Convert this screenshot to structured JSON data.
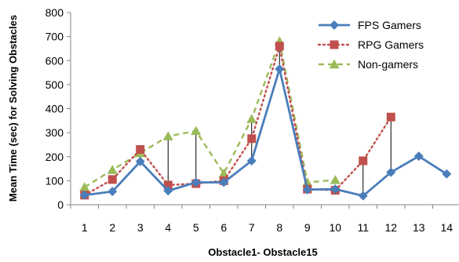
{
  "chart_data": {
    "type": "line",
    "title": "",
    "xlabel": "Obstacle1- Obstacle15",
    "ylabel": "Mean Time (sec) for Solving Obstacles",
    "x": [
      1,
      2,
      3,
      4,
      5,
      6,
      7,
      8,
      9,
      10,
      11,
      12,
      13,
      14
    ],
    "ylim": [
      0,
      800
    ],
    "yticks": [
      0,
      100,
      200,
      300,
      400,
      500,
      600,
      700,
      800
    ],
    "grid": false,
    "legend_position": "top-right",
    "series": [
      {
        "name": "FPS Gamers",
        "color": "#4A7EBB",
        "line_style": "solid",
        "marker": "diamond",
        "values": [
          40,
          55,
          180,
          58,
          93,
          93,
          183,
          565,
          63,
          65,
          37,
          135,
          202,
          128
        ]
      },
      {
        "name": "RPG Gamers",
        "color": "#C0504D",
        "line_style": "dotted",
        "marker": "square",
        "values": [
          40,
          105,
          230,
          82,
          88,
          100,
          275,
          660,
          65,
          60,
          183,
          365,
          null,
          null
        ]
      },
      {
        "name": "Non-gamers",
        "color": "#9BBB59",
        "line_style": "dashed",
        "marker": "triangle",
        "values": [
          73,
          145,
          215,
          285,
          307,
          130,
          357,
          680,
          93,
          103,
          null,
          null,
          null,
          null
        ]
      }
    ],
    "drop_lines": [
      {
        "x": 3,
        "from": 180,
        "to": 230
      },
      {
        "x": 4,
        "from": 58,
        "to": 285
      },
      {
        "x": 5,
        "from": 88,
        "to": 307
      },
      {
        "x": 7,
        "from": 183,
        "to": 357
      },
      {
        "x": 8,
        "from": 565,
        "to": 680
      },
      {
        "x": 11,
        "from": 37,
        "to": 183
      },
      {
        "x": 12,
        "from": 135,
        "to": 365
      }
    ]
  }
}
